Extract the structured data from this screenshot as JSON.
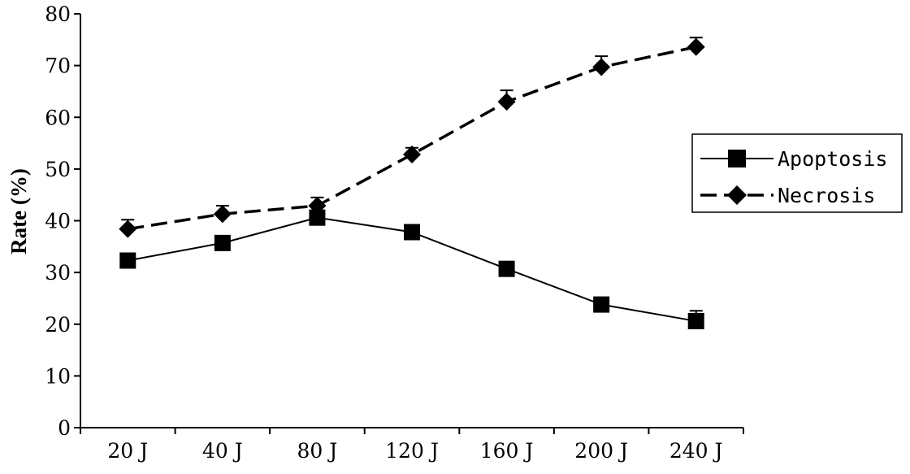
{
  "chart_data": {
    "type": "line",
    "categories": [
      "20 J",
      "40 J",
      "80 J",
      "120 J",
      "160 J",
      "200 J",
      "240 J"
    ],
    "ylabel": "Rate (%)",
    "xlabel": "",
    "ylim": [
      0,
      80
    ],
    "yticks": [
      0,
      10,
      20,
      30,
      40,
      50,
      60,
      70,
      80
    ],
    "grid": false,
    "legend": "right",
    "series": [
      {
        "name": "Apoptosis",
        "marker": "square",
        "line": "solid",
        "values": [
          32.3,
          35.7,
          40.6,
          37.8,
          30.7,
          23.8,
          20.6
        ],
        "errors": [
          1.2,
          0.8,
          0.9,
          1.4,
          0.6,
          1.0,
          2.0
        ]
      },
      {
        "name": "Necrosis",
        "marker": "diamond",
        "line": "dashed",
        "values": [
          38.4,
          41.3,
          42.9,
          52.8,
          63.0,
          69.7,
          73.6
        ],
        "errors": [
          1.8,
          1.6,
          1.6,
          1.3,
          2.2,
          2.1,
          1.8
        ]
      }
    ],
    "colors": {
      "line": "#000000"
    }
  }
}
